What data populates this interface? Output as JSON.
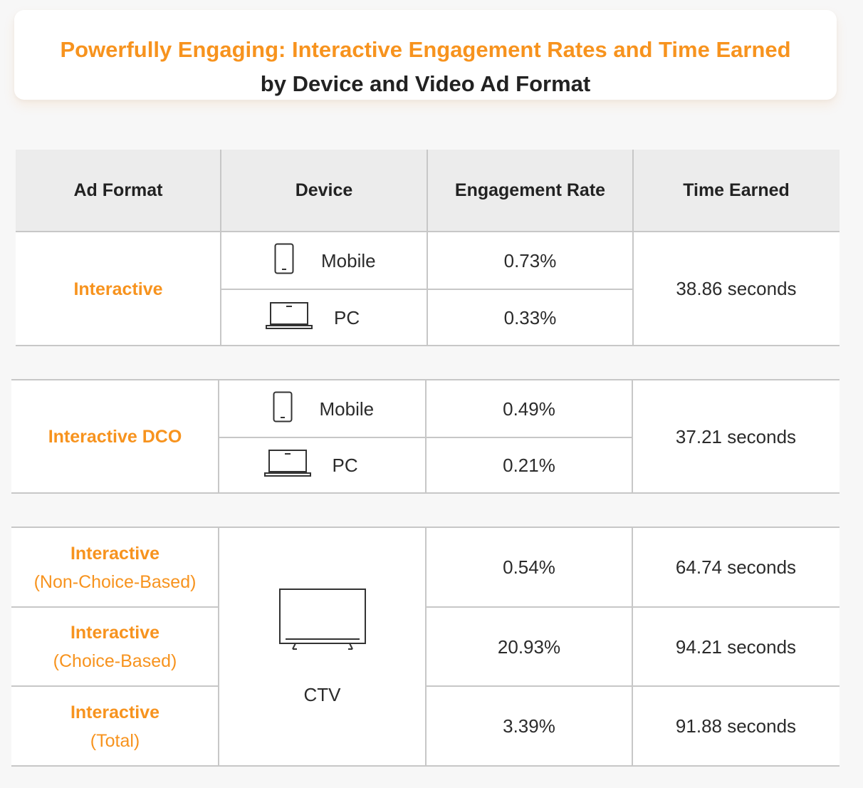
{
  "title": {
    "line1": "Powerfully Engaging: Interactive Engagement Rates and Time Earned",
    "line2": "by Device and Video Ad Format"
  },
  "chart_data": {
    "type": "table",
    "columns": [
      "Ad Format",
      "Device",
      "Engagement Rate",
      "Time Earned"
    ],
    "groups": [
      {
        "format": "Interactive",
        "time_earned": "38.86 seconds",
        "rows": [
          {
            "device": "Mobile",
            "device_icon": "mobile-phone-icon",
            "engagement_rate": "0.73%"
          },
          {
            "device": "PC",
            "device_icon": "laptop-icon",
            "engagement_rate": "0.33%"
          }
        ]
      },
      {
        "format": "Interactive DCO",
        "time_earned": "37.21 seconds",
        "rows": [
          {
            "device": "Mobile",
            "device_icon": "mobile-phone-icon",
            "engagement_rate": "0.49%"
          },
          {
            "device": "PC",
            "device_icon": "laptop-icon",
            "engagement_rate": "0.21%"
          }
        ]
      },
      {
        "device": "CTV",
        "device_icon": "tv-icon",
        "rows": [
          {
            "format": "Interactive",
            "format_sub": "(Non-Choice-Based)",
            "engagement_rate": "0.54%",
            "time_earned": "64.74 seconds"
          },
          {
            "format": "Interactive",
            "format_sub": "(Choice-Based)",
            "engagement_rate": "20.93%",
            "time_earned": "94.21 seconds"
          },
          {
            "format": "Interactive",
            "format_sub": "(Total)",
            "engagement_rate": "3.39%",
            "time_earned": "91.88 seconds"
          }
        ]
      }
    ]
  },
  "colors": {
    "accent": "#f7931e",
    "header_bg": "#ececec",
    "page_bg": "#f7f7f7",
    "grid": "#c7c7c7"
  }
}
